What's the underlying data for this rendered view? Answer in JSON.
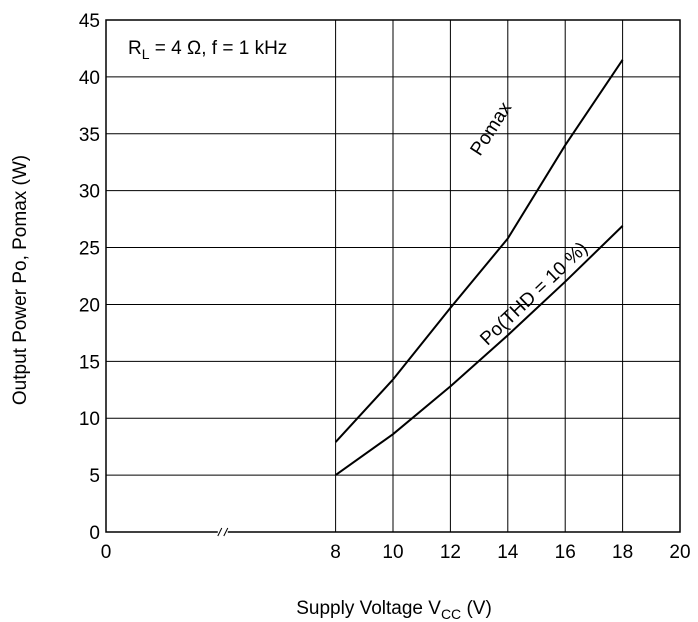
{
  "chart_data": {
    "type": "line",
    "title": "",
    "annotation": {
      "r_symbol": "R",
      "r_subscript": "L",
      "rest": " = 4 Ω, f = 1 kHz"
    },
    "xlabel": {
      "text": "Supply Voltage  V",
      "subscript": "CC",
      "unit": "  (V)"
    },
    "ylabel": "Output Power  Po, Pomax  (W)",
    "xlim": [
      0,
      20
    ],
    "ylim": [
      0,
      45
    ],
    "x_ticks": [
      0,
      8,
      10,
      12,
      14,
      16,
      18,
      20
    ],
    "y_ticks": [
      0,
      5,
      10,
      15,
      20,
      25,
      30,
      35,
      40,
      45
    ],
    "axis_break_between_x": [
      0,
      8
    ],
    "grid": true,
    "series": [
      {
        "name": "Pomax",
        "x": [
          8,
          10,
          12,
          14,
          16,
          18
        ],
        "y": [
          7.9,
          13.4,
          19.7,
          25.8,
          34.0,
          41.5
        ]
      },
      {
        "name": "Po(THD = 10 %)",
        "x": [
          8,
          10,
          12,
          14,
          16,
          18
        ],
        "y": [
          5.0,
          8.6,
          12.8,
          17.3,
          22.0,
          26.9
        ]
      }
    ]
  }
}
